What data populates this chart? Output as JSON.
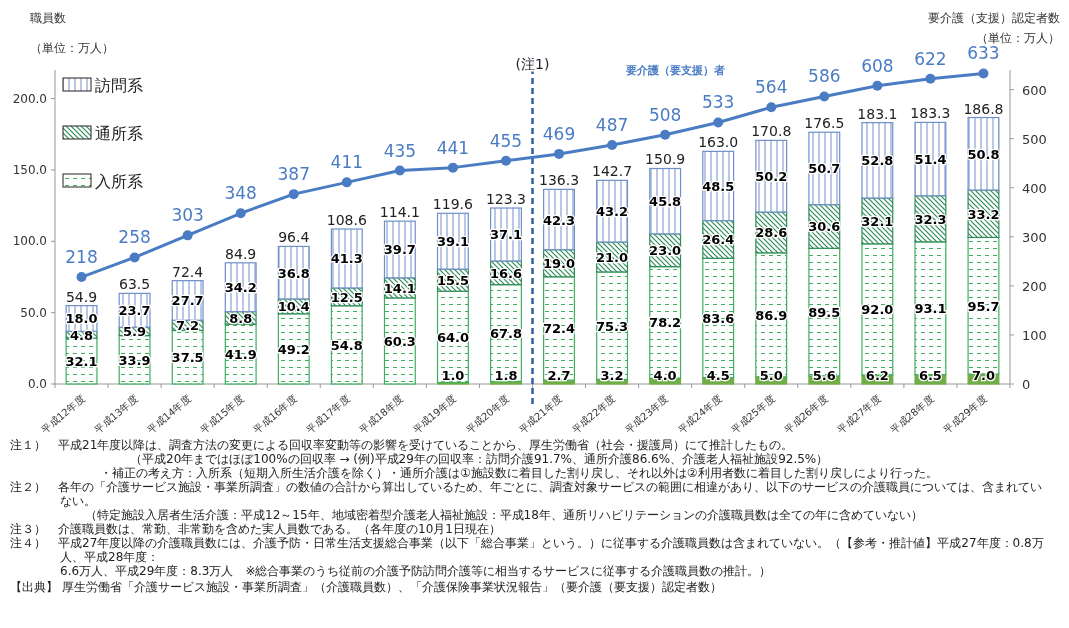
{
  "chart_data": {
    "type": "bar",
    "stacked": true,
    "ylabel": "職員数",
    "y2label": "要介護（支援）認定者数",
    "categories": [
      "平成12年度",
      "平成13年度",
      "平成14年度",
      "平成15年度",
      "平成16年度",
      "平成17年度",
      "平成18年度",
      "平成19年度",
      "平成20年度",
      "平成21年度",
      "平成22年度",
      "平成23年度",
      "平成24年度",
      "平成25年度",
      "平成26年度",
      "平成27年度",
      "平成28年度",
      "平成29年度"
    ],
    "series": [
      {
        "color": "#70ad47",
        "values": [
          null,
          null,
          null,
          null,
          null,
          null,
          null,
          1.0,
          1.8,
          2.7,
          3.2,
          4.0,
          4.5,
          5.0,
          5.6,
          6.2,
          6.5,
          7.0
        ],
        "value_labels": [
          null,
          null,
          null,
          null,
          null,
          null,
          null,
          "1.0",
          "1.8",
          "2.7",
          "3.2",
          "4.0",
          "4.5",
          "5.0",
          "5.6",
          "6.2",
          "6.5",
          "7.0"
        ]
      },
      {
        "name": "入所系",
        "color": "#3fae5f",
        "values": [
          32.1,
          33.9,
          37.5,
          41.9,
          49.2,
          54.8,
          60.3,
          64.0,
          67.8,
          72.4,
          75.3,
          78.2,
          83.6,
          86.9,
          89.5,
          92.0,
          93.1,
          95.7
        ],
        "value_labels": [
          "32.1",
          "33.9",
          "37.5",
          "41.9",
          "49.2",
          "54.8",
          "60.3",
          "64.0",
          "67.8",
          "72.4",
          "75.3",
          "78.2",
          "83.6",
          "86.9",
          "89.5",
          "92.0",
          "93.1",
          "95.7"
        ]
      },
      {
        "name": "通所系",
        "color": "#2e8b57",
        "values": [
          4.8,
          5.9,
          7.2,
          8.8,
          10.4,
          12.5,
          14.1,
          15.5,
          16.6,
          19.0,
          21.0,
          23.0,
          26.4,
          28.6,
          30.6,
          32.1,
          32.3,
          33.2
        ],
        "value_labels": [
          "4.8",
          "5.9",
          "7.2",
          "8.8",
          "10.4",
          "12.5",
          "14.1",
          "15.5",
          "16.6",
          "19.0",
          "21.0",
          "23.0",
          "26.4",
          "28.6",
          "30.6",
          "32.1",
          "32.3",
          "33.2"
        ]
      },
      {
        "name": "訪問系",
        "color": "#6f8fc9",
        "values": [
          18.0,
          23.7,
          27.7,
          34.2,
          36.8,
          41.3,
          39.7,
          39.1,
          37.1,
          42.3,
          43.2,
          45.8,
          48.5,
          50.2,
          50.7,
          52.8,
          51.4,
          50.8
        ],
        "value_labels": [
          "18.0",
          "23.7",
          "27.7",
          "34.2",
          "36.8",
          "41.3",
          "39.7",
          "39.1",
          "37.1",
          "42.3",
          "43.2",
          "45.8",
          "48.5",
          "50.2",
          "50.7",
          "52.8",
          "51.4",
          "50.8"
        ]
      },
      {
        "name": "要介護（要支援）者",
        "type": "line",
        "axis": "y2",
        "color": "#4a7cc4",
        "data_labels": true,
        "values": [
          218,
          258,
          303,
          348,
          387,
          411,
          435,
          441,
          455,
          469,
          487,
          508,
          533,
          564,
          586,
          608,
          622,
          633
        ]
      }
    ],
    "totals": [
      "54.9",
      "63.5",
      "72.4",
      "84.9",
      "96.4",
      "108.6",
      "114.1",
      "119.6",
      "123.3",
      "136.3",
      "142.7",
      "150.9",
      "163.0",
      "170.8",
      "176.5",
      "183.1",
      "183.3",
      "186.8"
    ],
    "marker": "circle",
    "legend": "top left",
    "grid": false,
    "ylim": [
      0,
      220
    ],
    "yticks": [
      {
        "value": 0,
        "label": "0.0"
      },
      {
        "value": 50,
        "label": "50.0"
      },
      {
        "value": 100,
        "label": "100.0"
      },
      {
        "value": 150,
        "label": "150.0"
      },
      {
        "value": 200,
        "label": "200.0"
      }
    ],
    "y2lim": [
      0,
      640
    ],
    "y2ticks": [
      0,
      100,
      200,
      300,
      400,
      500,
      600
    ],
    "ref_lines": [
      {
        "axis": "x",
        "value": "平成21年度",
        "label": "(注1)",
        "color": "#2f5f9e",
        "line_style": "dashed"
      }
    ],
    "annotations": [
      "（単位：万人）",
      "（単位：万人）",
      "注１）　平成21年度以降は、調査方法の変更による回収率変動等の影響を受けていることから、厚生労働省（社会・援護局）にて推計したもの。",
      "（平成20年まではほぼ100%の回収率 → (例)平成29年の回収率：訪問介護91.7%、通所介護86.6%、介護老人福祉施設92.5%）",
      "・補正の考え方：入所系（短期入所生活介護を除く）・通所介護は①施設数に着目した割り戻し、それ以外は②利用者数に着目した割り戻しにより行った。",
      "注２）　各年の「介護サービス施設・事業所調査」の数値の合計から算出しているため、年ごとに、調査対象サービスの範囲に相違があり、以下のサービスの介護職員については、含まれていない。",
      "（特定施設入居者生活介護：平成12～15年、地域密着型介護老人福祉施設：平成18年、通所リハビリテーションの介護職員数は全ての年に含めていない）",
      "注３）　介護職員数は、常勤、非常勤を含めた実人員数である。（各年度の10月1日現在）",
      "注４）　平成27年度以降の介護職員数には、介護予防・日常生活支援総合事業（以下「総合事業」という。）に従事する介護職員数は含まれていない。（【参考・推計値】平成27年度：0.8万人、平成28年度：",
      "6.6万人、平成29年度：8.3万人　※総合事業のうち従前の介護予防訪問介護等に相当するサービスに従事する介護職員数の推計。）",
      "【出典】 厚生労働省「介護サービス施設・事業所調査」（介護職員数）、「介護保険事業状況報告」（要介護（要支援）認定者数）"
    ]
  }
}
